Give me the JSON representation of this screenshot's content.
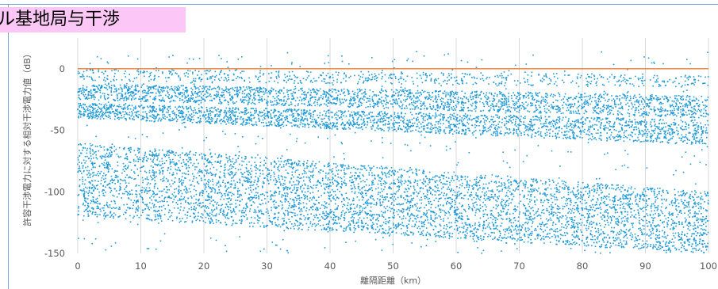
{
  "slide_title": "ル基地局与干渉",
  "chart_data": {
    "type": "scatter",
    "title": "",
    "xlabel": "離隔距離（km）",
    "ylabel": "許容干渉電力に対する相対干渉電力値（dB）",
    "xlim": [
      0,
      100
    ],
    "ylim": [
      -150,
      25
    ],
    "x_ticks": [
      0,
      10,
      20,
      30,
      40,
      50,
      60,
      70,
      80,
      90,
      100
    ],
    "x_tick_labels": [
      "0",
      "10",
      "20",
      "30",
      "40",
      "50",
      "60",
      "70",
      "80",
      "90",
      "100"
    ],
    "y_ticks": [
      0,
      -50,
      -100,
      -150
    ],
    "y_tick_labels": [
      "0",
      "-50",
      "-100",
      "-150"
    ],
    "grid": "vertical",
    "reference_line": {
      "y": 0,
      "color": "#ed7d31"
    },
    "marker_color": "#1f9ad6",
    "series": [
      {
        "clusters": [
          {
            "x": [
              0,
              100
            ],
            "y_start": [
              -12,
              -25
            ],
            "y_end": [
              -22,
              -40
            ],
            "count": 2200
          },
          {
            "x": [
              0,
              100
            ],
            "y_start": [
              -28,
              -40
            ],
            "y_end": [
              -42,
              -62
            ],
            "count": 2400
          },
          {
            "x": [
              0,
              100
            ],
            "y_start": [
              -60,
              -120
            ],
            "y_end": [
              -100,
              -150
            ],
            "count": 5200
          },
          {
            "x": [
              0,
              100
            ],
            "y_start": [
              0,
              -10
            ],
            "y_end": [
              -5,
              -15
            ],
            "count": 600
          },
          {
            "x": [
              0,
              100
            ],
            "y_start": [
              15,
              -150
            ],
            "y_end": [
              15,
              -150
            ],
            "count": 700
          }
        ]
      }
    ]
  }
}
